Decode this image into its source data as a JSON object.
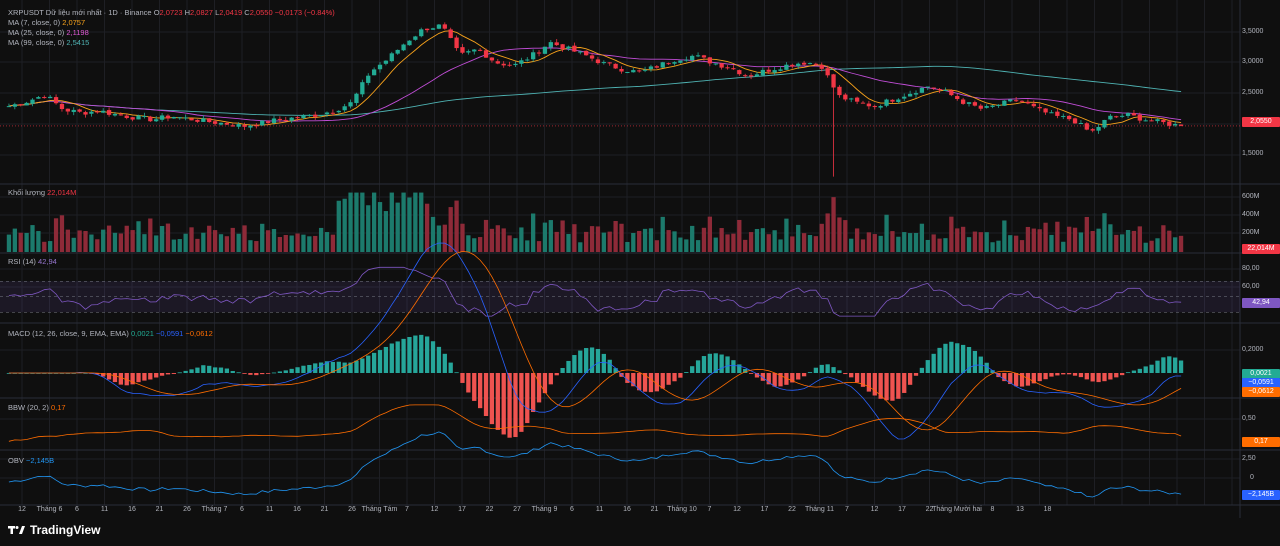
{
  "header": {
    "symbol": "XRPUSDT Dữ liệu mới nhất · 1D · Binance",
    "o_label": "O",
    "o": "2,0723",
    "h_label": "H",
    "h": "2,0827",
    "l_label": "L",
    "l": "2,0419",
    "c_label": "C",
    "c": "2,0550",
    "change": "−0,0173 (−0.84%)"
  },
  "ma_legend": [
    {
      "name": "MA (7, close, 0)",
      "value": "2,0757",
      "color": "#f7a21b"
    },
    {
      "name": "MA (25, close, 0)",
      "value": "2,1198",
      "color": "#c04dd6"
    },
    {
      "name": "MA (99, close, 0)",
      "value": "2,5415",
      "color": "#4fb3b3"
    }
  ],
  "colors": {
    "up": "#22ab94",
    "down": "#f23645",
    "rsi": "#7e57c2",
    "macd": "#2962ff",
    "signal": "#ff6d00",
    "bbw": "#ff6d00",
    "obv": "#2196f3",
    "grid": "#1e1f24",
    "axis_text": "#b2b5be"
  },
  "price_panel": {
    "axis_ticks": [
      "3,5000",
      "3,0000",
      "2,5000",
      "2,0000",
      "1,5000"
    ],
    "last_price": "2,0550"
  },
  "volume_panel": {
    "label": "Khối lượng",
    "value": "22,014M",
    "axis_ticks": [
      "600M",
      "400M",
      "200M"
    ],
    "last": "22,014M"
  },
  "rsi_panel": {
    "label": "RSI (14)",
    "value": "42,94",
    "axis_ticks": [
      "80,00",
      "60,00",
      "40,00"
    ],
    "last": "42,94"
  },
  "macd_panel": {
    "label": "MACD (12, 26, close, 9, EMA, EMA)",
    "hist": "0,0021",
    "macd": "−0,0591",
    "signal": "−0,0612",
    "axis_ticks": [
      "0,2000"
    ],
    "last_hist": "0,0021",
    "last_macd": "−0,0591",
    "last_signal": "−0,0612"
  },
  "bbw_panel": {
    "label": "BBW (20, 2)",
    "value": "0,17",
    "axis_ticks": [
      "0,50",
      "0,25"
    ],
    "last": "0,17"
  },
  "obv_panel": {
    "label": "OBV",
    "value": "−2,145B",
    "axis_ticks": [
      "2,50",
      "0"
    ],
    "last": "−2,145B"
  },
  "x_axis": [
    "12",
    "Tháng 6",
    "6",
    "11",
    "16",
    "21",
    "26",
    "Tháng 7",
    "6",
    "11",
    "16",
    "21",
    "26",
    "Tháng Tám",
    "7",
    "12",
    "17",
    "22",
    "27",
    "Tháng 9",
    "6",
    "11",
    "16",
    "21",
    "Tháng 10",
    "7",
    "12",
    "17",
    "22",
    "Tháng 11",
    "7",
    "12",
    "17",
    "22",
    "Tháng Mười hai",
    "8",
    "13",
    "18"
  ],
  "brand": "TradingView",
  "chart_data": {
    "type": "candlestick",
    "interval": "1D",
    "x_labels": [
      "12",
      "Tháng 6",
      "6",
      "11",
      "16",
      "21",
      "26",
      "Tháng 7",
      "6",
      "11",
      "16",
      "21",
      "26",
      "Tháng Tám",
      "7",
      "12",
      "17",
      "22",
      "27",
      "Tháng 9",
      "6",
      "11",
      "16",
      "21",
      "Tháng 10",
      "7",
      "12",
      "17",
      "22",
      "Tháng 11",
      "7",
      "12",
      "17",
      "22",
      "Tháng Mười hai",
      "8",
      "13",
      "18"
    ],
    "close_path": [
      2.35,
      2.42,
      2.52,
      2.3,
      2.25,
      2.28,
      2.22,
      2.18,
      2.15,
      2.2,
      2.16,
      2.12,
      2.09,
      2.05,
      2.1,
      2.15,
      2.18,
      2.22,
      2.28,
      2.4,
      2.85,
      3.05,
      3.3,
      3.5,
      3.55,
      3.1,
      3.2,
      3.0,
      2.95,
      3.1,
      3.3,
      3.2,
      3.1,
      2.98,
      2.9,
      2.85,
      2.95,
      3.05,
      3.1,
      3.0,
      2.92,
      2.8,
      2.88,
      2.95,
      3.0,
      2.98,
      2.5,
      2.4,
      2.35,
      2.45,
      2.55,
      2.65,
      2.55,
      2.4,
      2.3,
      2.38,
      2.45,
      2.3,
      2.2,
      2.15,
      1.95,
      2.18,
      2.22,
      2.15,
      2.1,
      2.055
    ],
    "ma_values": {
      "ma7": 2.0757,
      "ma25": 2.1198,
      "ma99": 2.5415
    },
    "price_ticks": [
      3.5,
      3.0,
      2.5,
      2.0,
      1.5
    ],
    "price_range": [
      1.25,
      3.75
    ],
    "volume_ticks_millions": [
      600,
      400,
      200
    ],
    "rsi_ticks": [
      80,
      60,
      40
    ],
    "rsi_bands": [
      70,
      50,
      30
    ],
    "rsi_last": 42.94,
    "macd_last": {
      "hist": 0.0021,
      "macd": -0.0591,
      "signal": -0.0612
    },
    "bbw_last": 0.17,
    "obv_last_billions": -2.145
  }
}
